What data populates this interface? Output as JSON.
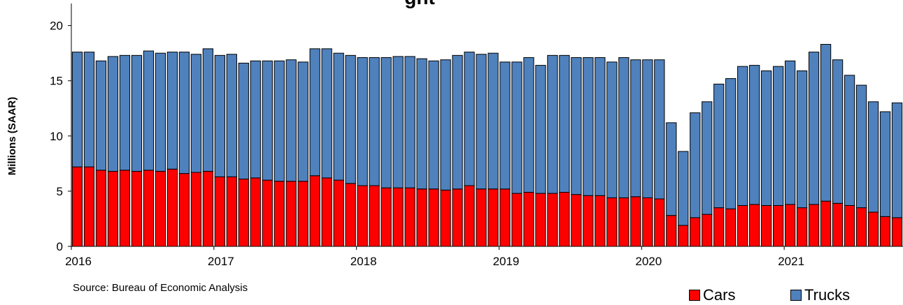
{
  "chart_data": {
    "type": "bar",
    "stacked": true,
    "title": "",
    "title_partial_visible": "ght",
    "xlabel": "",
    "ylabel": "Millions (SAAR)",
    "ylim": [
      0,
      22
    ],
    "yticks": [
      0,
      5,
      10,
      15,
      20
    ],
    "x_tick_labels": [
      "2016",
      "2017",
      "2018",
      "2019",
      "2020",
      "2021"
    ],
    "grid": false,
    "legend_position": "bottom-right",
    "source": "Source: Bureau of Economic Analysis",
    "months": [
      "2016-01",
      "2016-02",
      "2016-03",
      "2016-04",
      "2016-05",
      "2016-06",
      "2016-07",
      "2016-08",
      "2016-09",
      "2016-10",
      "2016-11",
      "2016-12",
      "2017-01",
      "2017-02",
      "2017-03",
      "2017-04",
      "2017-05",
      "2017-06",
      "2017-07",
      "2017-08",
      "2017-09",
      "2017-10",
      "2017-11",
      "2017-12",
      "2018-01",
      "2018-02",
      "2018-03",
      "2018-04",
      "2018-05",
      "2018-06",
      "2018-07",
      "2018-08",
      "2018-09",
      "2018-10",
      "2018-11",
      "2018-12",
      "2019-01",
      "2019-02",
      "2019-03",
      "2019-04",
      "2019-05",
      "2019-06",
      "2019-07",
      "2019-08",
      "2019-09",
      "2019-10",
      "2019-11",
      "2019-12",
      "2020-01",
      "2020-02",
      "2020-03",
      "2020-04",
      "2020-05",
      "2020-06",
      "2020-07",
      "2020-08",
      "2020-09",
      "2020-10",
      "2020-11",
      "2020-12",
      "2021-01",
      "2021-02",
      "2021-03",
      "2021-04",
      "2021-05",
      "2021-06",
      "2021-07",
      "2021-08",
      "2021-09",
      "2021-10"
    ],
    "series": [
      {
        "name": "Cars",
        "color": "#ff0000",
        "values": [
          7.2,
          7.2,
          6.9,
          6.8,
          6.9,
          6.8,
          6.9,
          6.8,
          7.0,
          6.6,
          6.7,
          6.8,
          6.3,
          6.3,
          6.1,
          6.2,
          6.0,
          5.9,
          5.9,
          5.9,
          6.4,
          6.2,
          6.0,
          5.7,
          5.5,
          5.5,
          5.3,
          5.3,
          5.3,
          5.2,
          5.2,
          5.1,
          5.2,
          5.5,
          5.2,
          5.2,
          5.2,
          4.8,
          4.9,
          4.8,
          4.8,
          4.9,
          4.7,
          4.6,
          4.6,
          4.4,
          4.4,
          4.5,
          4.4,
          4.3,
          2.8,
          1.9,
          2.6,
          2.9,
          3.5,
          3.4,
          3.7,
          3.8,
          3.7,
          3.7,
          3.8,
          3.5,
          3.8,
          4.1,
          3.9,
          3.7,
          3.5,
          3.1,
          2.7,
          2.6
        ]
      },
      {
        "name": "Trucks",
        "color": "#4f81bd",
        "values": [
          10.4,
          10.4,
          9.9,
          10.4,
          10.4,
          10.5,
          10.8,
          10.7,
          10.6,
          11.0,
          10.7,
          11.1,
          11.0,
          11.1,
          10.5,
          10.6,
          10.8,
          10.9,
          11.0,
          10.8,
          11.5,
          11.7,
          11.5,
          11.6,
          11.6,
          11.6,
          11.8,
          11.9,
          11.9,
          11.8,
          11.6,
          11.8,
          12.1,
          12.1,
          12.2,
          12.3,
          11.5,
          11.9,
          12.2,
          11.6,
          12.5,
          12.4,
          12.4,
          12.5,
          12.5,
          12.3,
          12.7,
          12.4,
          12.5,
          12.6,
          8.4,
          6.7,
          9.5,
          10.2,
          11.2,
          11.8,
          12.6,
          12.6,
          12.2,
          12.6,
          13.0,
          12.4,
          13.8,
          14.2,
          13.0,
          11.8,
          11.1,
          10.0,
          9.5,
          10.4
        ]
      }
    ]
  }
}
